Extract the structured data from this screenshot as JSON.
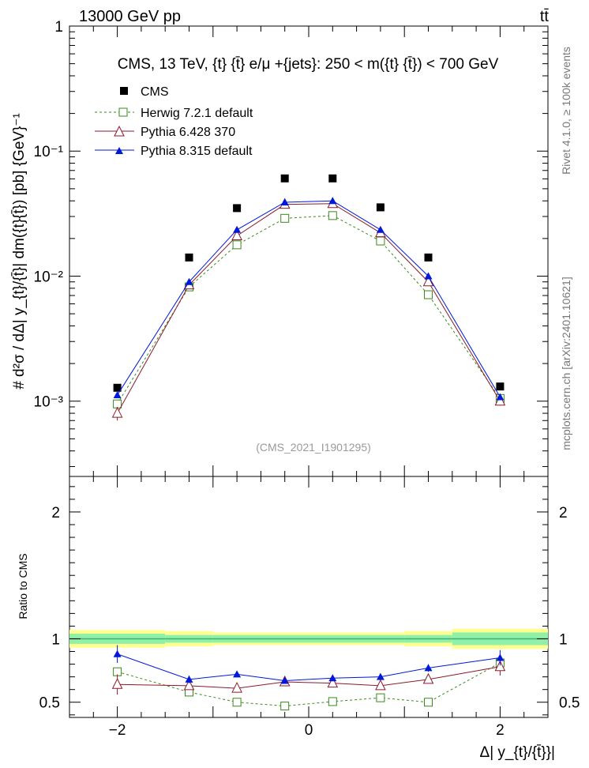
{
  "header": {
    "energy_label": "13000 GeV pp",
    "process_label": "tt̄",
    "plot_title": "CMS, 13 TeV, {t} {t̄} e/μ +{jets}: 250 < m({t} {t̄}) < 700 GeV",
    "analysis_id": "(CMS_2021_I1901295)",
    "side_label_top": "Rivet 4.1.0, ≥ 100k events",
    "side_label_bottom": "mcplots.cern.ch [arXiv:2401.10621]"
  },
  "colors": {
    "cms": "#000000",
    "herwig": "#3a8a1a",
    "pythia6": "#8b1a2b",
    "pythia8": "#0018d8",
    "band_inner": "#90f0a8",
    "band_outer": "#ffff90",
    "ratio_line": "#3cb371"
  },
  "chart_data": [
    {
      "name": "main",
      "type": "scatter",
      "yscale": "log",
      "ylabel": "# d²σ / dΔ| y_{t}/{t̄}| dm({t}{t̄}) [pb] {GeV}⁻¹",
      "xlim": [
        -2.5,
        2.5
      ],
      "ylim": [
        0.00025,
        1.0
      ],
      "y_ticks": [
        {
          "value": 1.0,
          "label": "1"
        },
        {
          "value": 0.1,
          "label": "10⁻¹"
        },
        {
          "value": 0.01,
          "label": "10⁻²"
        },
        {
          "value": 0.001,
          "label": "10⁻³"
        }
      ],
      "x": [
        -2.0,
        -1.25,
        -0.75,
        -0.25,
        0.25,
        0.75,
        1.25,
        2.0
      ],
      "series": [
        {
          "name": "CMS",
          "marker": "filled-square",
          "line": "none",
          "color_key": "cms",
          "values": [
            0.00128,
            0.0141,
            0.035,
            0.0605,
            0.0605,
            0.0355,
            0.0141,
            0.00131
          ]
        },
        {
          "name": "Herwig 7.2.1 default",
          "marker": "open-square",
          "line": "dashed",
          "color_key": "herwig",
          "values": [
            0.00095,
            0.0082,
            0.0178,
            0.029,
            0.0305,
            0.0191,
            0.0071,
            0.00105
          ]
        },
        {
          "name": "Pythia 6.428 370",
          "marker": "open-triangle",
          "line": "solid",
          "color_key": "pythia6",
          "values": [
            0.0008,
            0.0085,
            0.021,
            0.0375,
            0.038,
            0.0222,
            0.009,
            0.001
          ],
          "errors": [
            0.0001,
            0.0003,
            0.0005,
            0.0007,
            0.0007,
            0.0005,
            0.0003,
            8e-05
          ]
        },
        {
          "name": "Pythia 8.315 default",
          "marker": "filled-triangle",
          "line": "solid",
          "color_key": "pythia8",
          "values": [
            0.00112,
            0.009,
            0.0235,
            0.039,
            0.04,
            0.0235,
            0.01,
            0.00108
          ]
        }
      ]
    },
    {
      "name": "ratio",
      "type": "line",
      "ylabel": "Ratio to CMS",
      "xlabel": "Δ| y_{t}/{t̄}}|",
      "xlim": [
        -2.5,
        2.5
      ],
      "ylim": [
        0.38,
        2.28
      ],
      "y_ticks": [
        {
          "value": 0.5,
          "label": "0.5"
        },
        {
          "value": 1.0,
          "label": "1"
        },
        {
          "value": 2.0,
          "label": "2"
        }
      ],
      "x_ticks": [
        {
          "value": -2,
          "label": "−2"
        },
        {
          "value": 0,
          "label": "0"
        },
        {
          "value": 2,
          "label": "2"
        }
      ],
      "x": [
        -2.0,
        -1.25,
        -0.75,
        -0.25,
        0.25,
        0.75,
        1.25,
        2.0
      ],
      "band_edges": [
        -2.5,
        -1.5,
        -1.0,
        0.0,
        1.0,
        1.5,
        2.5
      ],
      "band_inner": [
        0.04,
        0.03,
        0.03,
        0.03,
        0.03,
        0.05
      ],
      "band_outer": [
        0.07,
        0.06,
        0.05,
        0.05,
        0.06,
        0.08
      ],
      "series": [
        {
          "name": "Herwig 7.2.1 default",
          "color_key": "herwig",
          "marker": "open-square",
          "line": "dashed",
          "values": [
            0.74,
            0.58,
            0.5,
            0.47,
            0.505,
            0.535,
            0.5,
            0.81
          ],
          "errors": [
            0.03,
            0.03,
            0.015,
            0.012,
            0.012,
            0.015,
            0.03,
            0.05
          ]
        },
        {
          "name": "Pythia 6.428 370",
          "color_key": "pythia6",
          "marker": "open-triangle",
          "line": "solid",
          "values": [
            0.64,
            0.63,
            0.61,
            0.66,
            0.65,
            0.63,
            0.68,
            0.78
          ],
          "errors": [
            0.08,
            0.02,
            0.015,
            0.012,
            0.012,
            0.015,
            0.025,
            0.07
          ]
        },
        {
          "name": "Pythia 8.315 default",
          "color_key": "pythia8",
          "marker": "filled-triangle",
          "line": "solid",
          "values": [
            0.88,
            0.68,
            0.72,
            0.67,
            0.69,
            0.7,
            0.77,
            0.85
          ],
          "errors": [
            0.07,
            0.03,
            0.02,
            0.012,
            0.012,
            0.02,
            0.03,
            0.06
          ]
        }
      ]
    }
  ]
}
